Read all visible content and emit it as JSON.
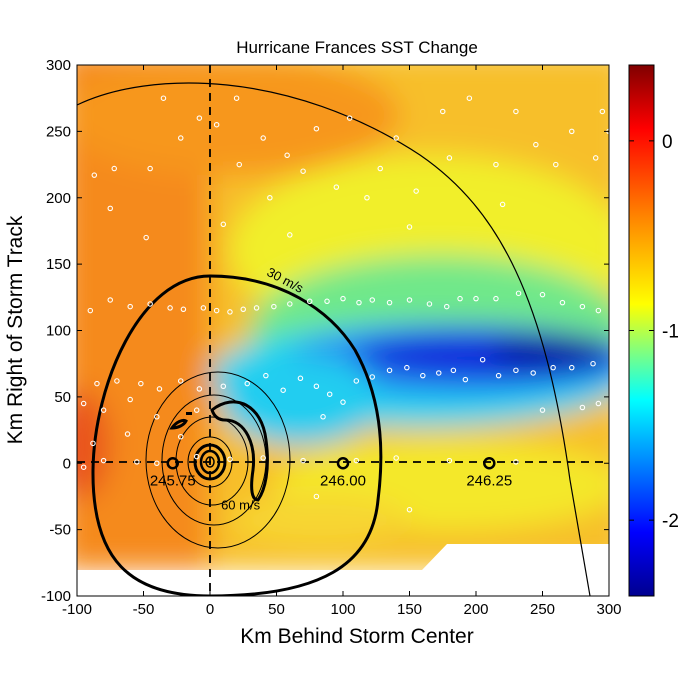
{
  "chart_data": {
    "type": "heatmap",
    "title": "Hurricane Frances SST Change",
    "xlabel": "Km Behind Storm Center",
    "ylabel": "Km Right of Storm Track",
    "xlim": [
      -100,
      300
    ],
    "ylim": [
      -100,
      300
    ],
    "x_ticks": [
      "-100",
      "-50",
      "0",
      "50",
      "100",
      "150",
      "200",
      "250",
      "300"
    ],
    "y_ticks": [
      "-100",
      "-50",
      "0",
      "50",
      "100",
      "150",
      "200",
      "250",
      "300"
    ],
    "colorbar": {
      "range": [
        -2.4,
        0.4
      ],
      "ticks": [
        {
          "value": 0,
          "label": "0"
        },
        {
          "value": -1,
          "label": "-1"
        },
        {
          "value": -2,
          "label": "-2"
        }
      ],
      "colormap": [
        "#00008f",
        "#0000ff",
        "#00ffff",
        "#ffff00",
        "#ff8000",
        "#ff0000",
        "#800000"
      ]
    },
    "field_description": "SST change ranges from about -0.5 (orange) on the left/ahead side to about -2.2 (deep blue) in a band near y=80 to the right of the track",
    "wind_contours": [
      {
        "label": "30 m/s",
        "label_at": [
          55,
          135
        ]
      },
      {
        "label": "60 m/s",
        "label_at": [
          23,
          -35
        ]
      }
    ],
    "center_markers": [
      {
        "label": "245.75",
        "x": -28,
        "y": 0
      },
      {
        "label": "246.00",
        "x": 100,
        "y": 0
      },
      {
        "label": "246.25",
        "x": 210,
        "y": 0
      }
    ],
    "reference_lines": {
      "x": 0,
      "y": 0,
      "style": "dashed"
    },
    "observation_points": [
      [
        -87,
        217
      ],
      [
        -72,
        222
      ],
      [
        -75,
        192
      ],
      [
        -45,
        222
      ],
      [
        -35,
        275
      ],
      [
        -22,
        245
      ],
      [
        -8,
        260
      ],
      [
        5,
        255
      ],
      [
        20,
        275
      ],
      [
        22,
        225
      ],
      [
        40,
        245
      ],
      [
        45,
        200
      ],
      [
        58,
        232
      ],
      [
        70,
        220
      ],
      [
        80,
        252
      ],
      [
        95,
        208
      ],
      [
        105,
        260
      ],
      [
        118,
        200
      ],
      [
        128,
        222
      ],
      [
        140,
        245
      ],
      [
        155,
        205
      ],
      [
        175,
        265
      ],
      [
        180,
        230
      ],
      [
        195,
        275
      ],
      [
        215,
        225
      ],
      [
        230,
        265
      ],
      [
        245,
        240
      ],
      [
        260,
        225
      ],
      [
        272,
        250
      ],
      [
        290,
        230
      ],
      [
        295,
        265
      ],
      [
        300,
        250
      ],
      [
        -48,
        170
      ],
      [
        10,
        180
      ],
      [
        60,
        172
      ],
      [
        150,
        178
      ],
      [
        220,
        195
      ],
      [
        -90,
        115
      ],
      [
        -75,
        123
      ],
      [
        -60,
        118
      ],
      [
        -45,
        120
      ],
      [
        -30,
        117
      ],
      [
        -20,
        116
      ],
      [
        -5,
        117
      ],
      [
        5,
        115
      ],
      [
        15,
        114
      ],
      [
        25,
        116
      ],
      [
        35,
        117
      ],
      [
        48,
        118
      ],
      [
        60,
        120
      ],
      [
        75,
        122
      ],
      [
        88,
        122
      ],
      [
        100,
        124
      ],
      [
        112,
        121
      ],
      [
        122,
        123
      ],
      [
        135,
        121
      ],
      [
        150,
        123
      ],
      [
        165,
        120
      ],
      [
        178,
        118
      ],
      [
        188,
        124
      ],
      [
        200,
        124
      ],
      [
        215,
        124
      ],
      [
        232,
        128
      ],
      [
        250,
        127
      ],
      [
        265,
        121
      ],
      [
        280,
        118
      ],
      [
        292,
        115
      ],
      [
        -85,
        60
      ],
      [
        -70,
        62
      ],
      [
        -52,
        60
      ],
      [
        -38,
        56
      ],
      [
        -22,
        62
      ],
      [
        -8,
        56
      ],
      [
        10,
        58
      ],
      [
        28,
        60
      ],
      [
        42,
        66
      ],
      [
        55,
        55
      ],
      [
        68,
        64
      ],
      [
        80,
        58
      ],
      [
        90,
        52
      ],
      [
        100,
        46
      ],
      [
        110,
        62
      ],
      [
        122,
        65
      ],
      [
        135,
        70
      ],
      [
        148,
        72
      ],
      [
        160,
        66
      ],
      [
        172,
        68
      ],
      [
        183,
        70
      ],
      [
        192,
        63
      ],
      [
        205,
        78
      ],
      [
        217,
        66
      ],
      [
        230,
        70
      ],
      [
        243,
        68
      ],
      [
        258,
        72
      ],
      [
        272,
        72
      ],
      [
        288,
        75
      ],
      [
        -95,
        45
      ],
      [
        -80,
        40
      ],
      [
        -60,
        48
      ],
      [
        -10,
        40
      ],
      [
        -40,
        35
      ],
      [
        -62,
        22
      ],
      [
        -88,
        15
      ],
      [
        -22,
        20
      ],
      [
        85,
        35
      ],
      [
        250,
        40
      ],
      [
        280,
        42
      ],
      [
        292,
        45
      ],
      [
        -95,
        -3
      ],
      [
        -80,
        2
      ],
      [
        -55,
        1
      ],
      [
        -40,
        0
      ],
      [
        -10,
        5
      ],
      [
        15,
        3
      ],
      [
        40,
        4
      ],
      [
        70,
        2
      ],
      [
        110,
        2
      ],
      [
        140,
        4
      ],
      [
        180,
        2
      ],
      [
        230,
        1
      ],
      [
        80,
        -25
      ],
      [
        150,
        -35
      ]
    ]
  }
}
